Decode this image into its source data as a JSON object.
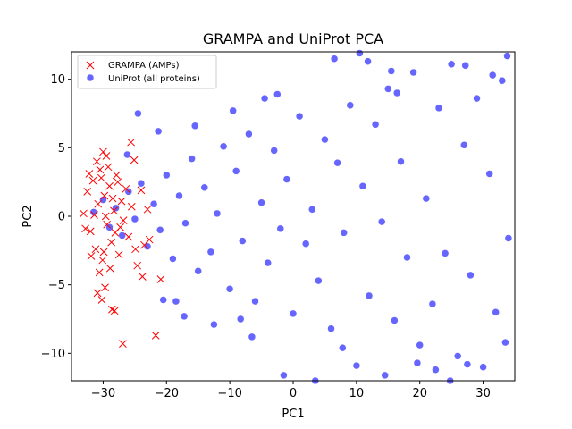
{
  "chart_data": {
    "type": "scatter",
    "title": "GRAMPA and UniProt PCA",
    "xlabel": "PC1",
    "ylabel": "PC2",
    "xlim": [
      -35,
      35
    ],
    "ylim": [
      -12,
      12
    ],
    "xticks": [
      -30,
      -20,
      -10,
      0,
      10,
      20,
      30
    ],
    "yticks": [
      -10,
      -5,
      0,
      5,
      10
    ],
    "xtick_labels": [
      "−30",
      "−20",
      "−10",
      "0",
      "10",
      "20",
      "30"
    ],
    "ytick_labels": [
      "−10",
      "−5",
      "0",
      "5",
      "10"
    ],
    "grid": false,
    "legend_placement": "top-left",
    "series": [
      {
        "name": "GRAMPA (AMPs)",
        "marker": "x",
        "color": "#ff0000",
        "points": [
          [
            -33.1,
            0.2
          ],
          [
            -32.5,
            1.8
          ],
          [
            -32.0,
            -1.1
          ],
          [
            -31.6,
            2.6
          ],
          [
            -31.2,
            -2.4
          ],
          [
            -30.8,
            0.9
          ],
          [
            -30.5,
            3.4
          ],
          [
            -30.1,
            -3.2
          ],
          [
            -29.8,
            1.5
          ],
          [
            -29.4,
            -0.6
          ],
          [
            -29.0,
            2.2
          ],
          [
            -28.7,
            -1.9
          ],
          [
            -28.3,
            0.4
          ],
          [
            -27.9,
            3.0
          ],
          [
            -27.5,
            -2.8
          ],
          [
            -27.1,
            1.1
          ],
          [
            -26.8,
            -0.3
          ],
          [
            -26.4,
            2.0
          ],
          [
            -26.0,
            -1.5
          ],
          [
            -25.5,
            0.7
          ],
          [
            -25.1,
            4.1
          ],
          [
            -24.6,
            -3.6
          ],
          [
            -24.0,
            1.9
          ],
          [
            -23.5,
            -2.1
          ],
          [
            -23.0,
            0.5
          ],
          [
            -32.8,
            -0.9
          ],
          [
            -32.2,
            3.1
          ],
          [
            -31.9,
            -2.9
          ],
          [
            -31.4,
            0.1
          ],
          [
            -31.0,
            4.0
          ],
          [
            -30.6,
            -4.1
          ],
          [
            -30.3,
            2.8
          ],
          [
            -29.9,
            -2.6
          ],
          [
            -29.6,
            0.0
          ],
          [
            -29.2,
            3.6
          ],
          [
            -28.9,
            -3.8
          ],
          [
            -28.5,
            1.3
          ],
          [
            -28.1,
            -1.2
          ],
          [
            -27.7,
            2.5
          ],
          [
            -27.3,
            -0.8
          ],
          [
            -30.9,
            -5.6
          ],
          [
            -30.2,
            -6.1
          ],
          [
            -29.7,
            -5.2
          ],
          [
            -28.6,
            -6.8
          ],
          [
            -28.2,
            -6.9
          ],
          [
            -29.5,
            4.4
          ],
          [
            -30.0,
            4.7
          ],
          [
            -25.6,
            5.4
          ],
          [
            -26.9,
            -9.3
          ],
          [
            -21.7,
            -8.7
          ],
          [
            -23.8,
            -4.4
          ],
          [
            -24.9,
            -2.4
          ],
          [
            -22.7,
            -1.7
          ],
          [
            -20.9,
            -4.6
          ]
        ]
      },
      {
        "name": "UniProt (all proteins)",
        "marker": "o",
        "color": "#0000ff",
        "points": [
          [
            -31.5,
            0.3
          ],
          [
            -30.0,
            1.2
          ],
          [
            -29.0,
            -0.8
          ],
          [
            -28.0,
            0.6
          ],
          [
            -27.0,
            -1.4
          ],
          [
            -26.0,
            1.8
          ],
          [
            -25.0,
            -0.2
          ],
          [
            -24.0,
            2.4
          ],
          [
            -23.0,
            -2.2
          ],
          [
            -22.0,
            0.9
          ],
          [
            -21.0,
            -1.0
          ],
          [
            -20.0,
            3.0
          ],
          [
            -19.0,
            -3.1
          ],
          [
            -18.0,
            1.5
          ],
          [
            -17.0,
            -0.5
          ],
          [
            -16.0,
            4.2
          ],
          [
            -15.0,
            -4.0
          ],
          [
            -14.0,
            2.1
          ],
          [
            -13.0,
            -2.6
          ],
          [
            -12.0,
            0.2
          ],
          [
            -11.0,
            5.1
          ],
          [
            -10.0,
            -5.3
          ],
          [
            -9.0,
            3.3
          ],
          [
            -8.0,
            -1.8
          ],
          [
            -7.0,
            6.0
          ],
          [
            -6.0,
            -6.2
          ],
          [
            -5.0,
            1.0
          ],
          [
            -4.0,
            -3.4
          ],
          [
            -3.0,
            4.8
          ],
          [
            -2.0,
            -0.9
          ],
          [
            -1.0,
            2.7
          ],
          [
            0.0,
            -7.1
          ],
          [
            1.0,
            7.3
          ],
          [
            2.0,
            -2.0
          ],
          [
            3.0,
            0.5
          ],
          [
            4.0,
            -4.7
          ],
          [
            5.0,
            5.6
          ],
          [
            6.0,
            -8.2
          ],
          [
            7.0,
            3.9
          ],
          [
            8.0,
            -1.2
          ],
          [
            9.0,
            8.1
          ],
          [
            10.0,
            -10.9
          ],
          [
            11.0,
            2.2
          ],
          [
            12.0,
            -5.8
          ],
          [
            13.0,
            6.7
          ],
          [
            14.0,
            -0.4
          ],
          [
            15.0,
            9.3
          ],
          [
            16.0,
            -7.6
          ],
          [
            17.0,
            4.0
          ],
          [
            18.0,
            -3.0
          ],
          [
            19.0,
            10.5
          ],
          [
            20.0,
            -9.4
          ],
          [
            21.0,
            1.3
          ],
          [
            22.0,
            -6.4
          ],
          [
            23.0,
            7.9
          ],
          [
            24.0,
            -2.7
          ],
          [
            25.0,
            11.1
          ],
          [
            26.0,
            -10.2
          ],
          [
            27.0,
            5.2
          ],
          [
            28.0,
            -4.3
          ],
          [
            29.0,
            8.6
          ],
          [
            30.0,
            -11.0
          ],
          [
            31.0,
            3.1
          ],
          [
            32.0,
            -7.0
          ],
          [
            33.0,
            9.9
          ],
          [
            34.0,
            -1.6
          ],
          [
            -18.5,
            -6.2
          ],
          [
            -15.5,
            6.6
          ],
          [
            -12.5,
            -7.9
          ],
          [
            -9.5,
            7.7
          ],
          [
            -6.5,
            -8.8
          ],
          [
            -2.5,
            8.9
          ],
          [
            6.5,
            11.5
          ],
          [
            10.5,
            11.9
          ],
          [
            14.5,
            -11.6
          ],
          [
            22.5,
            -11.2
          ],
          [
            27.5,
            -10.8
          ],
          [
            33.5,
            -9.2
          ],
          [
            -20.5,
            -6.1
          ],
          [
            -24.5,
            7.5
          ],
          [
            -26.2,
            4.5
          ],
          [
            -4.5,
            8.6
          ],
          [
            15.5,
            10.6
          ],
          [
            27.2,
            11.0
          ],
          [
            31.5,
            10.3
          ],
          [
            33.8,
            11.7
          ],
          [
            -1.5,
            -11.6
          ],
          [
            3.5,
            -12.0
          ],
          [
            -21.3,
            6.2
          ],
          [
            -17.2,
            -7.3
          ],
          [
            24.8,
            -12.0
          ],
          [
            11.8,
            11.3
          ],
          [
            7.8,
            -9.6
          ],
          [
            19.6,
            -10.7
          ],
          [
            -8.3,
            -7.5
          ],
          [
            16.4,
            9.0
          ]
        ]
      }
    ]
  }
}
